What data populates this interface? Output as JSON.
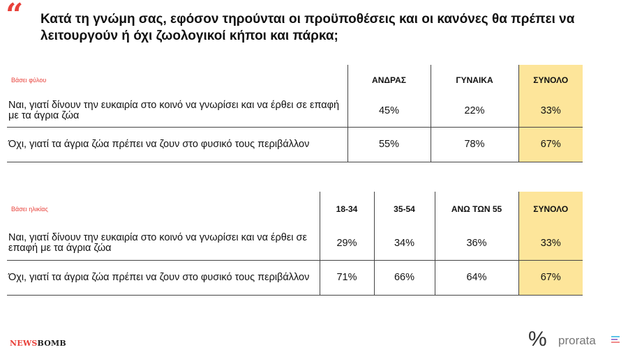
{
  "header": {
    "quote_glyph": "“",
    "title": "Κατά τη γνώμη σας, εφόσον τηρούνται οι προϋποθέσεις και οι κανόνες θα πρέπει να λειτουργούν ή όχι ζωολογικοί κήποι και πάρκα;"
  },
  "colors": {
    "accent": "#e8413a",
    "total_highlight": "#fde59a"
  },
  "chart_data": [
    {
      "type": "table",
      "category_label": "Βάσει φύλου",
      "columns": [
        "ΑΝΔΡΑΣ",
        "ΓΥΝΑΙΚΑ",
        "ΣΥΝΟΛΟ"
      ],
      "rows": [
        {
          "label": "Ναι, γιατί δίνουν την ευκαιρία στο κοινό να γνωρίσει και να έρθει σε επαφή με τα άγρια ζώα",
          "values": [
            "45%",
            "22%",
            "33%"
          ]
        },
        {
          "label": "Όχι, γιατί τα άγρια ζώα πρέπει να ζουν στο φυσικό τους περιβάλλον",
          "values": [
            "55%",
            "78%",
            "67%"
          ]
        }
      ]
    },
    {
      "type": "table",
      "category_label": "Βάσει ηλικίας",
      "columns": [
        "18-34",
        "35-54",
        "ΑΝΩ ΤΩΝ 55",
        "ΣΥΝΟΛΟ"
      ],
      "rows": [
        {
          "label": "Ναι, γιατί δίνουν την ευκαιρία στο κοινό να γνωρίσει και να έρθει σε επαφή με τα άγρια ζώα",
          "values": [
            "29%",
            "34%",
            "36%",
            "33%"
          ]
        },
        {
          "label": "Όχι, γιατί τα άγρια ζώα πρέπει να ζουν στο φυσικό τους περιβάλλον",
          "values": [
            "71%",
            "66%",
            "64%",
            "67%"
          ]
        }
      ]
    }
  ],
  "footer": {
    "brand_left_a": "NEWS",
    "brand_left_b": "BOMB",
    "pct_glyph": "%",
    "brand_right": "prorata",
    "bar_colors": [
      "#5bc5e8",
      "#9b7fd4",
      "#f08a8a"
    ]
  }
}
